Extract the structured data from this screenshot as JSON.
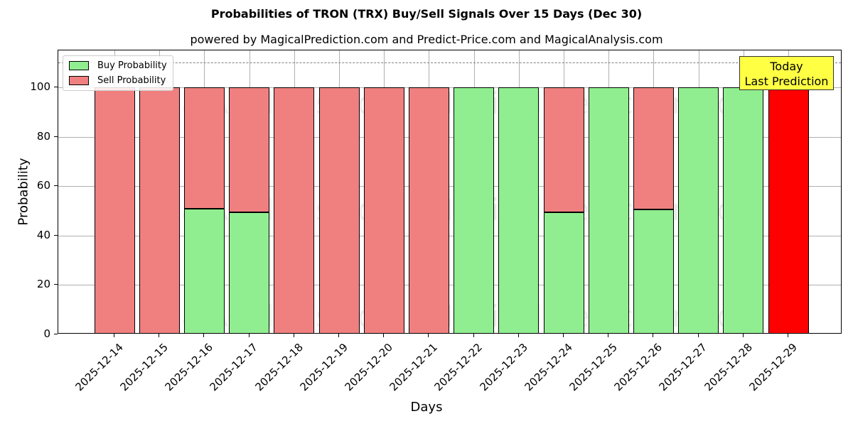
{
  "title": "Probabilities of TRON (TRX) Buy/Sell Signals Over 15 Days (Dec 30)",
  "subtitle": "powered by MagicalPrediction.com and Predict-Price.com and MagicalAnalysis.com",
  "watermarks": [
    "MagicalAnalysis.com",
    "MagicalPrediction.com"
  ],
  "colors": {
    "buy": "#90ee90",
    "sell": "#f08080",
    "today": "#ff0000",
    "annotation_bg": "#ffff44",
    "grid": "#b0b0b0"
  },
  "chart_data": {
    "type": "bar",
    "stacked": true,
    "title": "Probabilities of TRON (TRX) Buy/Sell Signals Over 15 Days (Dec 30)",
    "subtitle": "powered by MagicalPrediction.com and Predict-Price.com and MagicalAnalysis.com",
    "xlabel": "Days",
    "ylabel": "Probability",
    "ylim": [
      0,
      115
    ],
    "yticks": [
      0,
      20,
      40,
      60,
      80,
      100
    ],
    "grid": true,
    "legend_position": "upper left",
    "categories": [
      "2025-12-14",
      "2025-12-15",
      "2025-12-16",
      "2025-12-17",
      "2025-12-18",
      "2025-12-19",
      "2025-12-20",
      "2025-12-21",
      "2025-12-22",
      "2025-12-23",
      "2025-12-24",
      "2025-12-25",
      "2025-12-26",
      "2025-12-27",
      "2025-12-28",
      "2025-12-29"
    ],
    "series": [
      {
        "name": "Buy Probability",
        "color": "#90ee90",
        "values": [
          0,
          0,
          50.9,
          49.4,
          0,
          0,
          0,
          0,
          100,
          100,
          49.4,
          100,
          50.7,
          100,
          100,
          0
        ]
      },
      {
        "name": "Sell Probability",
        "color": "#f08080",
        "values": [
          100,
          100,
          49.1,
          50.6,
          100,
          100,
          100,
          100,
          0,
          0,
          50.6,
          0,
          49.3,
          0,
          0,
          100
        ]
      }
    ],
    "highlight": {
      "category": "2025-12-29",
      "color": "#ff0000",
      "label": "Today\nLast Prediction"
    },
    "reference_line": {
      "y": 110,
      "style": "dashed",
      "color": "#808080"
    },
    "annotations": [
      {
        "text": "Today Last Prediction",
        "x": "2025-12-29",
        "y": 110
      }
    ]
  },
  "legend": {
    "buy_label": "Buy Probability",
    "sell_label": "Sell Probability"
  },
  "annotation": {
    "line1": "Today",
    "line2": "Last Prediction"
  }
}
